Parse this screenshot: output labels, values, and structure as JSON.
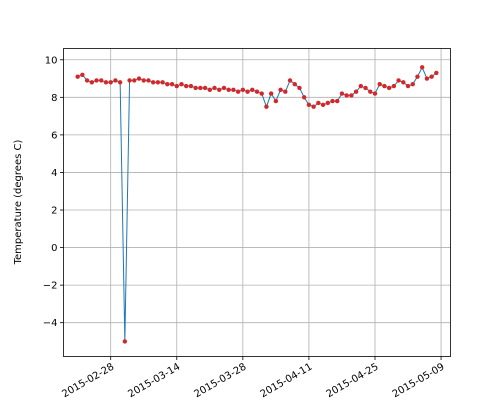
{
  "chart_data": {
    "type": "line",
    "title": "",
    "xlabel": "",
    "ylabel": "Temperature (degrees C)",
    "grid": true,
    "legend": "none",
    "xlim": [
      "2015-02-18",
      "2015-05-11"
    ],
    "ylim": [
      -5.8,
      10.6
    ],
    "x_ticks": [
      "2015-02-28",
      "2015-03-14",
      "2015-03-28",
      "2015-04-11",
      "2015-04-25",
      "2015-05-09"
    ],
    "y_ticks": [
      -4,
      -2,
      0,
      2,
      4,
      6,
      8,
      10
    ],
    "y_tick_labels": [
      "−4",
      "−2",
      "0",
      "2",
      "4",
      "6",
      "8",
      "10"
    ],
    "colors": {
      "line": "#1f77b4",
      "marker": "#d62728"
    },
    "series": [
      {
        "x": [
          "2015-02-21",
          "2015-02-22",
          "2015-02-23",
          "2015-02-24",
          "2015-02-25",
          "2015-02-26",
          "2015-02-27",
          "2015-02-28",
          "2015-03-01",
          "2015-03-02",
          "2015-03-03",
          "2015-03-04",
          "2015-03-05",
          "2015-03-06",
          "2015-03-07",
          "2015-03-08",
          "2015-03-09",
          "2015-03-10",
          "2015-03-11",
          "2015-03-12",
          "2015-03-13",
          "2015-03-14",
          "2015-03-15",
          "2015-03-16",
          "2015-03-17",
          "2015-03-18",
          "2015-03-19",
          "2015-03-20",
          "2015-03-21",
          "2015-03-22",
          "2015-03-23",
          "2015-03-24",
          "2015-03-25",
          "2015-03-26",
          "2015-03-27",
          "2015-03-28",
          "2015-03-29",
          "2015-03-30",
          "2015-03-31",
          "2015-04-01",
          "2015-04-02",
          "2015-04-03",
          "2015-04-04",
          "2015-04-05",
          "2015-04-06",
          "2015-04-07",
          "2015-04-08",
          "2015-04-09",
          "2015-04-10",
          "2015-04-11",
          "2015-04-12",
          "2015-04-13",
          "2015-04-14",
          "2015-04-15",
          "2015-04-16",
          "2015-04-17",
          "2015-04-18",
          "2015-04-19",
          "2015-04-20",
          "2015-04-21",
          "2015-04-22",
          "2015-04-23",
          "2015-04-24",
          "2015-04-25",
          "2015-04-26",
          "2015-04-27",
          "2015-04-28",
          "2015-04-29",
          "2015-04-30",
          "2015-05-01",
          "2015-05-02",
          "2015-05-03",
          "2015-05-04",
          "2015-05-05",
          "2015-05-06",
          "2015-05-07",
          "2015-05-08"
        ],
        "y": [
          9.1,
          9.2,
          8.9,
          8.8,
          8.9,
          8.9,
          8.8,
          8.8,
          8.9,
          8.8,
          -5.0,
          8.9,
          8.9,
          9.0,
          8.9,
          8.9,
          8.8,
          8.8,
          8.8,
          8.7,
          8.7,
          8.6,
          8.7,
          8.6,
          8.6,
          8.5,
          8.5,
          8.5,
          8.4,
          8.5,
          8.4,
          8.5,
          8.4,
          8.4,
          8.3,
          8.4,
          8.3,
          8.4,
          8.3,
          8.2,
          7.5,
          8.2,
          7.8,
          8.4,
          8.3,
          8.9,
          8.7,
          8.5,
          8.0,
          7.6,
          7.5,
          7.7,
          7.6,
          7.7,
          7.8,
          7.8,
          8.2,
          8.1,
          8.1,
          8.3,
          8.6,
          8.5,
          8.3,
          8.2,
          8.7,
          8.6,
          8.5,
          8.6,
          8.9,
          8.8,
          8.6,
          8.7,
          9.1,
          9.6,
          9.0,
          9.1,
          9.3
        ]
      }
    ]
  }
}
